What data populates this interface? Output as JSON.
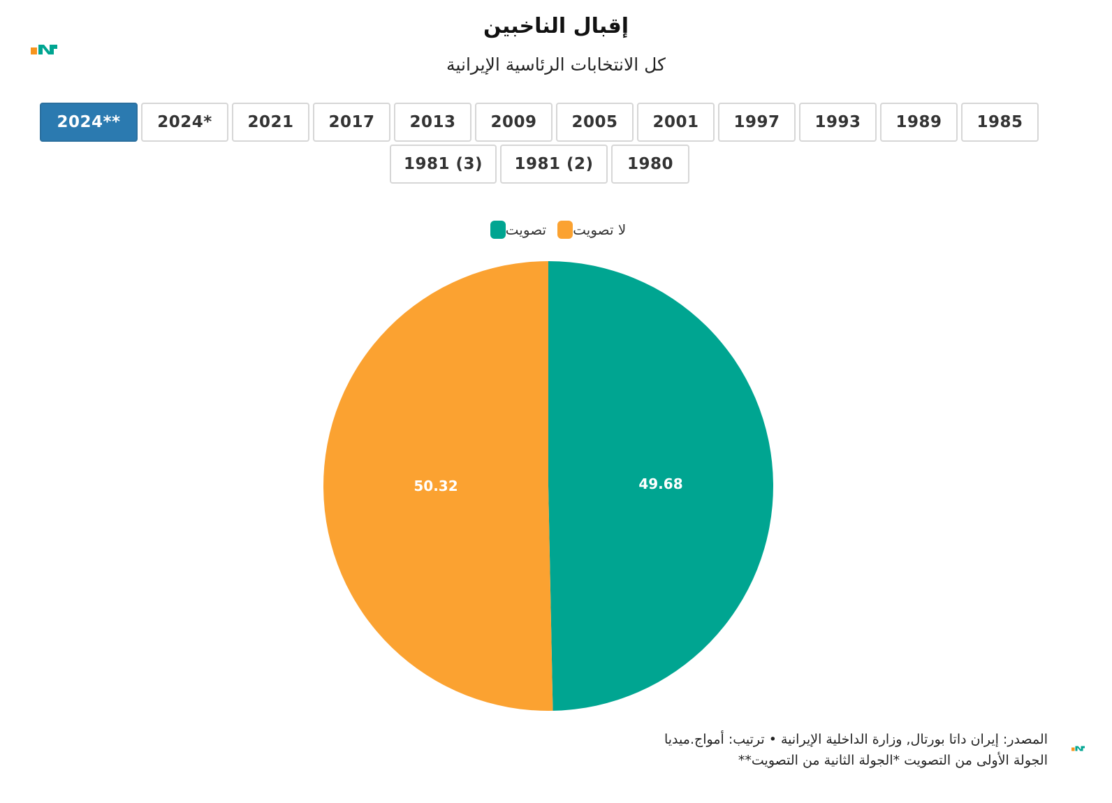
{
  "header": {
    "title": "إقبال الناخبين",
    "subtitle": "كل الانتخابات الرئاسية الإيرانية"
  },
  "tabs": [
    {
      "label": "2024**",
      "active": true
    },
    {
      "label": "2024*",
      "active": false
    },
    {
      "label": "2021",
      "active": false
    },
    {
      "label": "2017",
      "active": false
    },
    {
      "label": "2013",
      "active": false
    },
    {
      "label": "2009",
      "active": false
    },
    {
      "label": "2005",
      "active": false
    },
    {
      "label": "2001",
      "active": false
    },
    {
      "label": "1997",
      "active": false
    },
    {
      "label": "1993",
      "active": false
    },
    {
      "label": "1989",
      "active": false
    },
    {
      "label": "1985",
      "active": false
    },
    {
      "label": "1981 (3)",
      "active": false
    },
    {
      "label": "1981 (2)",
      "active": false
    },
    {
      "label": "1980",
      "active": false
    }
  ],
  "chart_data": {
    "type": "pie",
    "title": "",
    "series": [
      {
        "name": "تصويت",
        "value": 49.68,
        "color": "#00a591"
      },
      {
        "name": "لا تصويت",
        "value": 50.32,
        "color": "#fba231"
      }
    ],
    "legend": "top",
    "legend_order": [
      "لا تصويت",
      "تصويت"
    ]
  },
  "footer": {
    "line1": "المصدر: إيران داتا بورتال, وزارة الداخلية الإيرانية • ترتيب: أمواج.ميديا",
    "line2": "الجولة الأولى من التصويت *الجولة الثانية من التصويت**"
  },
  "colors": {
    "accent": "#2b7ab0",
    "logo_orange": "#f7941d",
    "logo_teal": "#00a591"
  }
}
